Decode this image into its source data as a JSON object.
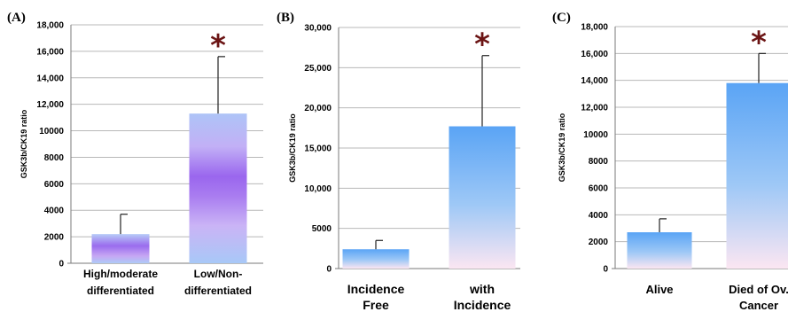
{
  "chart_data": [
    {
      "type": "bar",
      "panel": "(A)",
      "ylabel": "GSK3b/CK19 ratio",
      "ylim": [
        0,
        18000
      ],
      "yticks": [
        0,
        2000,
        4000,
        6000,
        8000,
        10000,
        12000,
        14000,
        16000,
        18000
      ],
      "ytick_labels": [
        "0",
        "2000",
        "4000",
        "6000",
        "8000",
        "10000",
        "12,000",
        "14,000",
        "16,000",
        "18,000"
      ],
      "categories": [
        [
          "High/moderate",
          "differentiated"
        ],
        [
          "Low/Non-",
          "differentiated"
        ]
      ],
      "values": [
        2200,
        11300
      ],
      "error_upper": [
        3700,
        15600
      ],
      "significance": [
        "",
        "*"
      ],
      "grid": true
    },
    {
      "type": "bar",
      "panel": "(B)",
      "ylabel": "GSK3b/CK19 ratio",
      "ylim": [
        0,
        30000
      ],
      "yticks": [
        0,
        5000,
        10000,
        15000,
        20000,
        25000,
        30000
      ],
      "ytick_labels": [
        "0",
        "5000",
        "10,000",
        "15,000",
        "20,000",
        "25,000",
        "30,000"
      ],
      "categories": [
        [
          "Incidence",
          "Free"
        ],
        [
          "with",
          "Incidence"
        ]
      ],
      "values": [
        2400,
        17700
      ],
      "error_upper": [
        3500,
        26500
      ],
      "significance": [
        "",
        "*"
      ],
      "grid": true
    },
    {
      "type": "bar",
      "panel": "(C)",
      "ylabel": "GSK3b/CK19 ratio",
      "ylim": [
        0,
        18000
      ],
      "yticks": [
        0,
        2000,
        4000,
        6000,
        8000,
        10000,
        12000,
        14000,
        16000,
        18000
      ],
      "ytick_labels": [
        "0",
        "2000",
        "4000",
        "6000",
        "8000",
        "10000",
        "12,000",
        "14,000",
        "16,000",
        "18,000"
      ],
      "categories": [
        [
          "Alive"
        ],
        [
          "Died of Ov.",
          "Cancer"
        ]
      ],
      "values": [
        2700,
        13800
      ],
      "error_upper": [
        3700,
        16000
      ],
      "significance": [
        "",
        "*"
      ],
      "grid": true
    }
  ]
}
